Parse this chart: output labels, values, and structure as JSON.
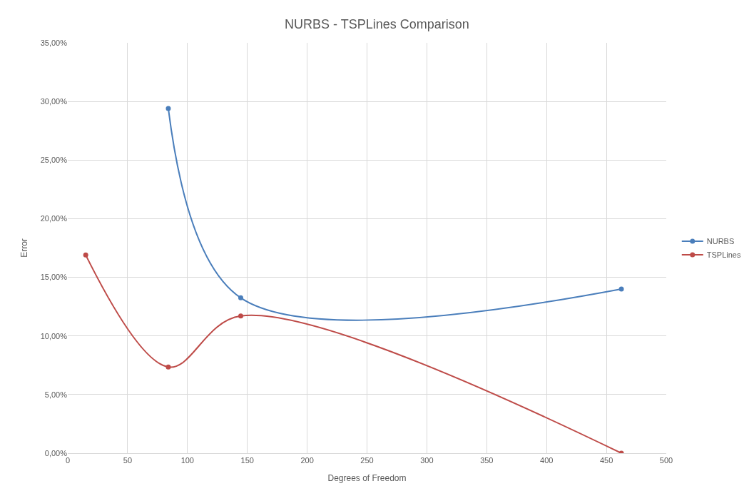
{
  "chart_data": {
    "type": "line",
    "title": "NURBS - TSPLines Comparison",
    "xlabel": "Degrees of Freedom",
    "ylabel": "Error",
    "series": [
      {
        "name": "NURBS",
        "color": "#4a7ebb",
        "x": [
          84,
          144.5,
          462.5
        ],
        "values": [
          29.4,
          13.25,
          14.0
        ]
      },
      {
        "name": "TSPLines",
        "color": "#be4b48",
        "x": [
          15,
          84,
          144.5,
          462.5
        ],
        "values": [
          16.9,
          7.35,
          11.7,
          0.0
        ]
      }
    ],
    "xlim": [
      0,
      500
    ],
    "xticks": [
      0,
      50,
      100,
      150,
      200,
      250,
      300,
      350,
      400,
      450,
      500
    ],
    "ylim": [
      0,
      35
    ],
    "yticks": [
      {
        "value": 0,
        "label": "0,00%"
      },
      {
        "value": 5,
        "label": "5,00%"
      },
      {
        "value": 10,
        "label": "10,00%"
      },
      {
        "value": 15,
        "label": "15,00%"
      },
      {
        "value": 20,
        "label": "20,00%"
      },
      {
        "value": 25,
        "label": "25,00%"
      },
      {
        "value": 30,
        "label": "30,00%"
      },
      {
        "value": 35,
        "label": "35,00%"
      }
    ],
    "grid": true,
    "legend": "right",
    "marker": "circle",
    "line_style": "solid"
  }
}
